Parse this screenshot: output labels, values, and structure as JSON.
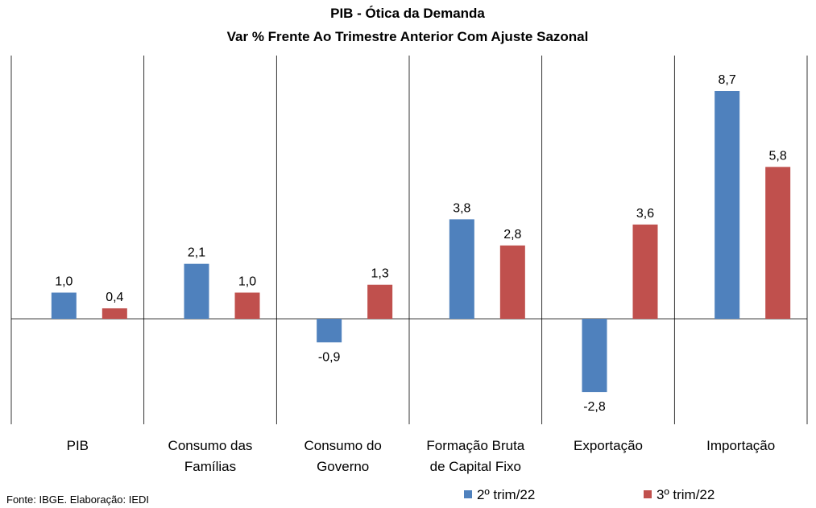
{
  "chart_data": {
    "type": "bar",
    "title": "PIB - Ótica da Demanda",
    "subtitle": "Var % Frente Ao Trimestre Anterior Com Ajuste Sazonal",
    "categories": [
      [
        "PIB"
      ],
      [
        "Consumo das",
        "Famílias"
      ],
      [
        "Consumo do",
        "Governo"
      ],
      [
        "Formação Bruta",
        "de Capital Fixo"
      ],
      [
        "Exportação"
      ],
      [
        "Importação"
      ]
    ],
    "series": [
      {
        "name": "2º trim/22",
        "color": "#4F81BD",
        "values": [
          1.0,
          2.1,
          -0.9,
          3.8,
          -2.8,
          8.7
        ],
        "labels": [
          "1,0",
          "2,1",
          "-0,9",
          "3,8",
          "-2,8",
          "8,7"
        ]
      },
      {
        "name": "3º trim/22",
        "color": "#C0504D",
        "values": [
          0.4,
          1.0,
          1.3,
          2.8,
          3.6,
          5.8
        ],
        "labels": [
          "0,4",
          "1,0",
          "1,3",
          "2,8",
          "3,6",
          "5,8"
        ]
      }
    ],
    "ylim": [
      -4,
      10
    ],
    "legend_position": "bottom-right",
    "grid": false,
    "source": "Fonte: IBGE. Elaboração: IEDI"
  }
}
